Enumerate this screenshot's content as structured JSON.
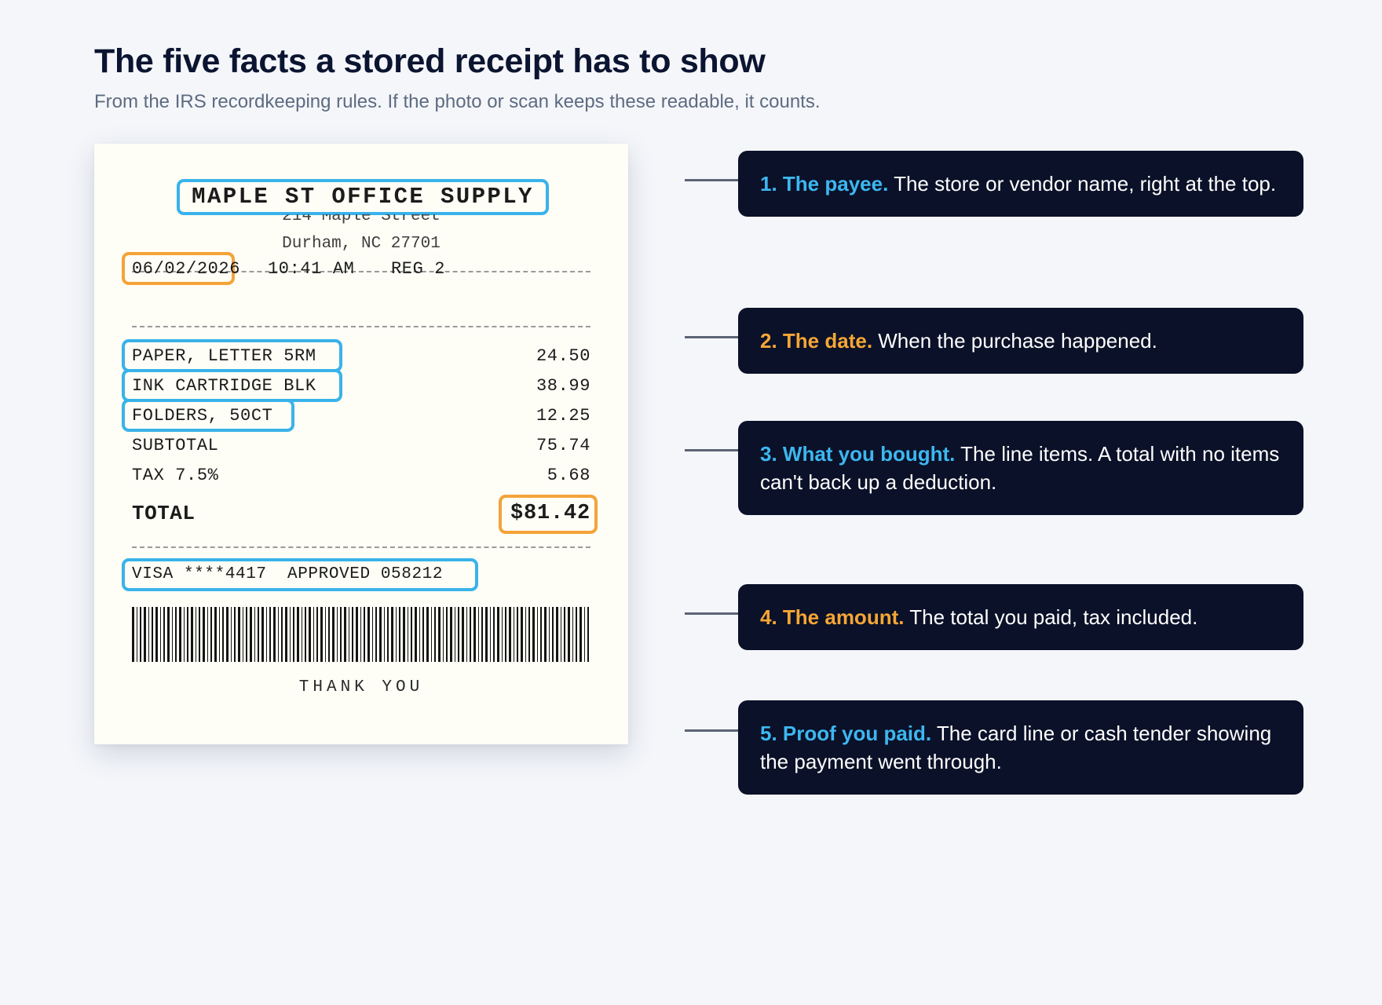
{
  "header": {
    "title": "The five facts a stored receipt has to show",
    "subtitle": "From the IRS recordkeeping rules. If the photo or scan keeps these readable, it counts."
  },
  "receipt": {
    "store_name": "MAPLE ST OFFICE SUPPLY",
    "address_line1": "214 Maple Street",
    "address_line2": "Durham, NC 27701",
    "date": "06/02/2026",
    "time": "10:41 AM",
    "register": "REG 2",
    "items": [
      {
        "name": "PAPER, LETTER 5RM",
        "amount": "24.50"
      },
      {
        "name": "INK CARTRIDGE BLK",
        "amount": "38.99"
      },
      {
        "name": "FOLDERS, 50CT",
        "amount": "12.25"
      }
    ],
    "subtotal_label": "SUBTOTAL",
    "subtotal": "75.74",
    "tax_label": "TAX 7.5%",
    "tax": "5.68",
    "total_label": "TOTAL",
    "total": "$81.42",
    "payment_line": "VISA ****4417  APPROVED 058212",
    "footer": "THANK YOU"
  },
  "callouts": [
    {
      "number_heading": "1. The payee.",
      "text": " The store or vendor name, right at the top.",
      "accent": "#3db7f0"
    },
    {
      "number_heading": "2. The date.",
      "text": " When the purchase happened.",
      "accent": "#f6a635"
    },
    {
      "number_heading": "3. What you bought.",
      "text": " The line items. A total with no items can't back up a deduction.",
      "accent": "#3db7f0"
    },
    {
      "number_heading": "4. The amount.",
      "text": " The total you paid, tax included.",
      "accent": "#f6a635"
    },
    {
      "number_heading": "5. Proof you paid.",
      "text": " The card line or cash tender showing the payment went through.",
      "accent": "#3db7f0"
    }
  ],
  "colors": {
    "highlight_blue": "#39b3ea",
    "highlight_orange": "#f4a338",
    "callout_bg": "#0a1128"
  }
}
